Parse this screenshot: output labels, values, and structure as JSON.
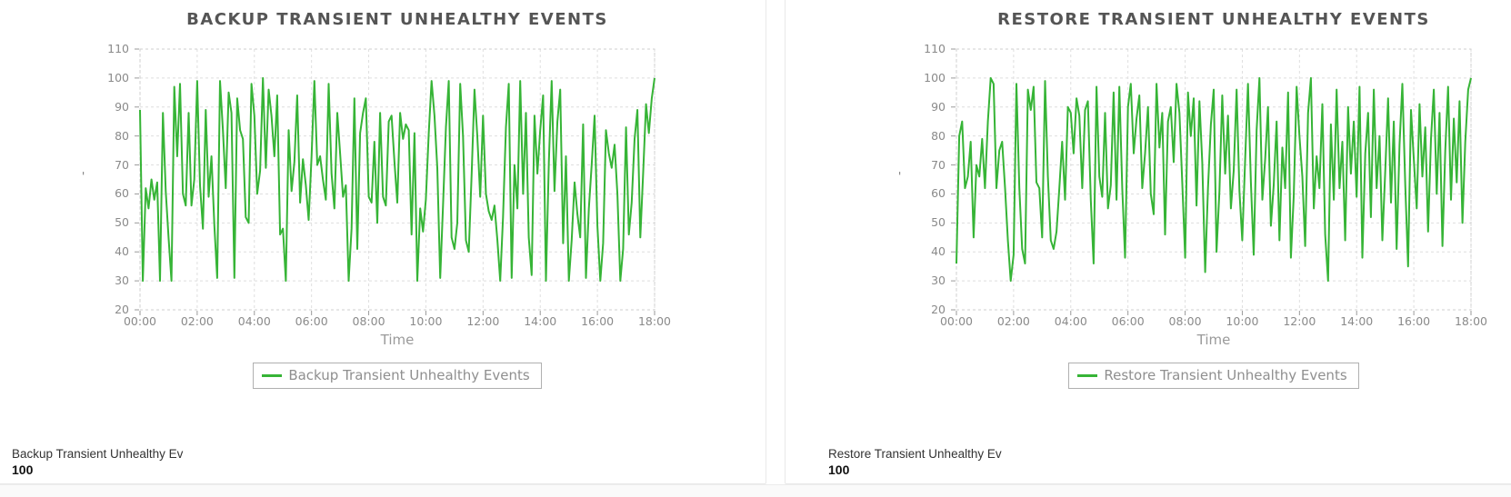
{
  "colors": {
    "line_green": "#36b436",
    "grid": "#dedede",
    "plot_border": "#cfcfcf",
    "tick_mark": "#9a9a9a"
  },
  "footer": {},
  "chart_data": [
    {
      "type": "line",
      "title": "BACKUP TRANSIENT UNHEALTHY EVENTS",
      "xlabel": "Time",
      "y_axis_mark": "'",
      "ylim": [
        20,
        110
      ],
      "yticks": [
        110,
        100,
        90,
        80,
        70,
        60,
        50,
        40,
        30,
        20
      ],
      "xticks": [
        "00:00",
        "02:00",
        "04:00",
        "06:00",
        "08:00",
        "10:00",
        "12:00",
        "14:00",
        "16:00",
        "18:00"
      ],
      "grid": true,
      "legend_position": "bottom",
      "line_color": "#36b436",
      "legend": "Backup Transient Unhealthy Events",
      "summary_label": "Backup Transient Unhealthy Ev",
      "summary_value": "100",
      "series": [
        {
          "name": "Backup Transient Unhealthy Events",
          "values": [
            89,
            30,
            62,
            55,
            65,
            58,
            64,
            30,
            88,
            61,
            45,
            30,
            97,
            73,
            98,
            60,
            56,
            88,
            56,
            65,
            99,
            63,
            48,
            89,
            59,
            73,
            49,
            31,
            99,
            82,
            62,
            95,
            88,
            31,
            93,
            82,
            79,
            52,
            50,
            98,
            87,
            60,
            68,
            100,
            69,
            96,
            87,
            73,
            94,
            46,
            48,
            30,
            82,
            61,
            71,
            94,
            57,
            72,
            63,
            51,
            73,
            99,
            70,
            73,
            65,
            58,
            98,
            67,
            55,
            88,
            74,
            59,
            63,
            30,
            48,
            93,
            41,
            81,
            88,
            93,
            59,
            57,
            78,
            50,
            88,
            59,
            56,
            85,
            87,
            71,
            57,
            88,
            79,
            84,
            82,
            46,
            81,
            30,
            55,
            47,
            58,
            81,
            99,
            87,
            69,
            31,
            56,
            83,
            99,
            45,
            41,
            50,
            98,
            80,
            44,
            40,
            67,
            96,
            80,
            59,
            87,
            60,
            54,
            51,
            56,
            44,
            30,
            52,
            83,
            98,
            31,
            70,
            55,
            99,
            60,
            88,
            45,
            32,
            87,
            67,
            82,
            94,
            30,
            71,
            99,
            61,
            85,
            96,
            43,
            73,
            30,
            44,
            64,
            53,
            45,
            84,
            31,
            55,
            70,
            87,
            49,
            30,
            43,
            82,
            74,
            69,
            77,
            60,
            30,
            41,
            83,
            46,
            57,
            79,
            89,
            45,
            67,
            91,
            81,
            93,
            100
          ]
        }
      ]
    },
    {
      "type": "line",
      "title": "RESTORE TRANSIENT UNHEALTHY EVENTS",
      "xlabel": "Time",
      "y_axis_mark": "'",
      "ylim": [
        20,
        110
      ],
      "yticks": [
        110,
        100,
        90,
        80,
        70,
        60,
        50,
        40,
        30,
        20
      ],
      "xticks": [
        "00:00",
        "02:00",
        "04:00",
        "06:00",
        "08:00",
        "10:00",
        "12:00",
        "14:00",
        "16:00",
        "18:00"
      ],
      "grid": true,
      "legend_position": "bottom",
      "line_color": "#36b436",
      "legend": "Restore Transient Unhealthy Events",
      "summary_label": "Restore Transient Unhealthy Ev",
      "summary_value": "100",
      "series": [
        {
          "name": "Restore Transient Unhealthy Events",
          "values": [
            36,
            80,
            85,
            62,
            66,
            78,
            45,
            70,
            66,
            79,
            62,
            85,
            100,
            98,
            62,
            75,
            78,
            62,
            44,
            30,
            39,
            98,
            62,
            41,
            36,
            96,
            89,
            97,
            64,
            62,
            45,
            99,
            66,
            44,
            41,
            47,
            62,
            78,
            58,
            90,
            88,
            74,
            93,
            87,
            62,
            89,
            92,
            58,
            36,
            97,
            66,
            59,
            88,
            55,
            63,
            95,
            58,
            97,
            62,
            38,
            90,
            98,
            74,
            86,
            94,
            62,
            74,
            90,
            60,
            53,
            98,
            76,
            88,
            46,
            85,
            90,
            71,
            98,
            88,
            64,
            38,
            95,
            80,
            93,
            56,
            92,
            71,
            33,
            62,
            84,
            96,
            40,
            61,
            94,
            67,
            87,
            55,
            68,
            96,
            61,
            44,
            72,
            98,
            64,
            39,
            82,
            100,
            58,
            72,
            90,
            49,
            63,
            85,
            44,
            76,
            62,
            95,
            38,
            59,
            97,
            80,
            66,
            42,
            88,
            100,
            55,
            73,
            62,
            91,
            46,
            30,
            84,
            58,
            96,
            62,
            78,
            44,
            90,
            67,
            85,
            59,
            97,
            38,
            74,
            88,
            52,
            96,
            62,
            80,
            44,
            68,
            93,
            57,
            85,
            41,
            77,
            98,
            63,
            35,
            89,
            72,
            55,
            91,
            66,
            83,
            47,
            79,
            96,
            60,
            88,
            42,
            75,
            97,
            58,
            86,
            64,
            92,
            50,
            78,
            96,
            100
          ]
        }
      ]
    }
  ]
}
